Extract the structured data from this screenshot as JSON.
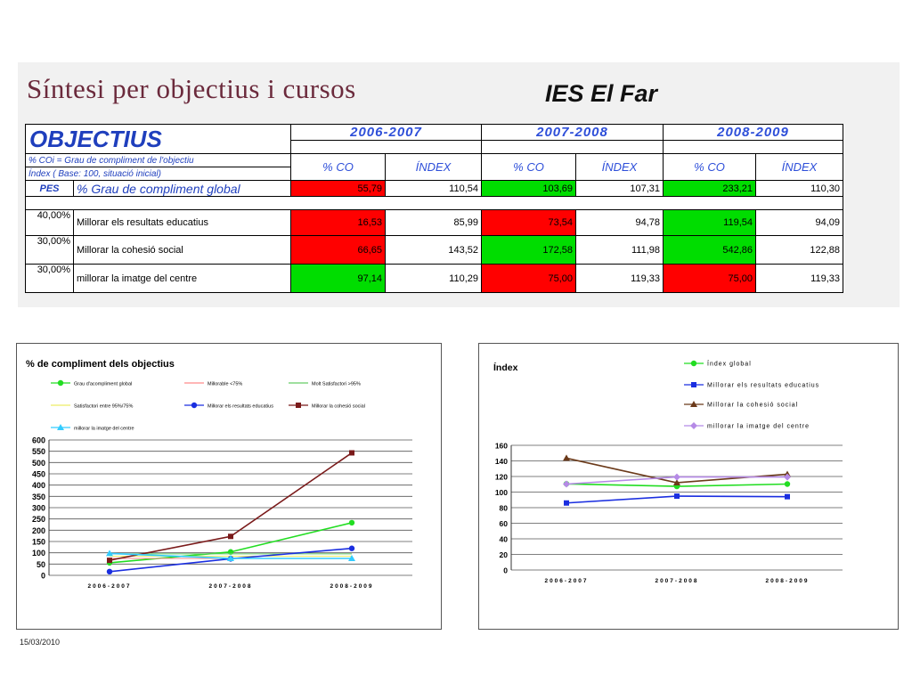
{
  "slide_title": "Síntesi per objectius i cursos",
  "school": "IES El Far",
  "table": {
    "header": "OBJECTIUS",
    "years": [
      "2006-2007",
      "2007-2008",
      "2008-2009"
    ],
    "col_co": "% CO",
    "col_index": "ÍNDEX",
    "legend1": "% COi = Grau de compliment  de l'objectiu",
    "legend2": "Índex  ( Base: 100, situació inicial)",
    "pes_label": "PES",
    "global_label": "%  Grau de compliment  global",
    "global_values": [
      "55,79",
      "110,54",
      "103,69",
      "107,31",
      "233,21",
      "110,30"
    ],
    "global_colors": [
      "#ff0000",
      "#ffffff",
      "#00dd00",
      "#ffffff",
      "#00dd00",
      "#ffffff"
    ],
    "rows": [
      {
        "pes": "40,00%",
        "name": "Millorar els resultats educatius",
        "values": [
          "16,53",
          "85,99",
          "73,54",
          "94,78",
          "119,54",
          "94,09"
        ],
        "colors": [
          "#ff0000",
          "#ffffff",
          "#ff0000",
          "#ffffff",
          "#00dd00",
          "#ffffff"
        ]
      },
      {
        "pes": "30,00%",
        "name": "Millorar la cohesió social",
        "values": [
          "66,65",
          "143,52",
          "172,58",
          "111,98",
          "542,86",
          "122,88"
        ],
        "colors": [
          "#ff0000",
          "#ffffff",
          "#00dd00",
          "#ffffff",
          "#00dd00",
          "#ffffff"
        ]
      },
      {
        "pes": "30,00%",
        "name": "millorar la imatge del centre",
        "values": [
          "97,14",
          "110,29",
          "75,00",
          "119,33",
          "75,00",
          "119,33"
        ],
        "colors": [
          "#00dd00",
          "#ffffff",
          "#ff0000",
          "#ffffff",
          "#ff0000",
          "#ffffff"
        ]
      }
    ]
  },
  "chart_data": [
    {
      "type": "line",
      "title": "% de compliment dels objectius",
      "categories": [
        "2006-2007",
        "2007-2008",
        "2008-2009"
      ],
      "ylim": [
        0,
        600
      ],
      "yticks": [
        0,
        50,
        100,
        150,
        200,
        250,
        300,
        350,
        400,
        450,
        500,
        550,
        600
      ],
      "grid": true,
      "legend_position": "top",
      "series": [
        {
          "name": "Grau d'acompliment global",
          "values": [
            55.79,
            103.69,
            233.21
          ],
          "color": "#22dd22",
          "marker": "circle"
        },
        {
          "name": "Millorable <75%",
          "values": [
            75,
            75,
            75
          ],
          "color": "#ff8a8a",
          "marker": "none"
        },
        {
          "name": "Molt Satisfactori >95%",
          "values": [
            95,
            95,
            95
          ],
          "color": "#66cc66",
          "marker": "none"
        },
        {
          "name": "Satisfactori entre 95%/75%",
          "values": [
            85,
            85,
            85
          ],
          "color": "#eeee66",
          "marker": "none"
        },
        {
          "name": "Millorar els resultats educatius",
          "values": [
            16.53,
            73.54,
            119.54
          ],
          "color": "#1a2ee0",
          "marker": "circle"
        },
        {
          "name": "Millorar la cohesió social",
          "values": [
            66.65,
            172.58,
            542.86
          ],
          "color": "#7a1a1a",
          "marker": "square"
        },
        {
          "name": "millorar la imatge del centre",
          "values": [
            97.14,
            75.0,
            75.0
          ],
          "color": "#33ccff",
          "marker": "triangle"
        }
      ]
    },
    {
      "type": "line",
      "title": "Índex",
      "categories": [
        "2006-2007",
        "2007-2008",
        "2008-2009"
      ],
      "ylim": [
        0,
        160
      ],
      "yticks": [
        0,
        20,
        40,
        60,
        80,
        100,
        120,
        140,
        160
      ],
      "grid": true,
      "legend_position": "top",
      "series": [
        {
          "name": "Índex global",
          "values": [
            110.54,
            107.31,
            110.3
          ],
          "color": "#22dd22",
          "marker": "circle"
        },
        {
          "name": "Millorar els resultats educatius",
          "values": [
            85.99,
            94.78,
            94.09
          ],
          "color": "#1a2ee0",
          "marker": "square"
        },
        {
          "name": "Millorar la cohesió social",
          "values": [
            143.52,
            111.98,
            122.88
          ],
          "color": "#6b3a1a",
          "marker": "triangle"
        },
        {
          "name": "millorar la imatge del centre",
          "values": [
            110.29,
            119.33,
            119.33
          ],
          "color": "#b58ae6",
          "marker": "diamond"
        }
      ]
    }
  ],
  "footer_date": "15/03/2010"
}
